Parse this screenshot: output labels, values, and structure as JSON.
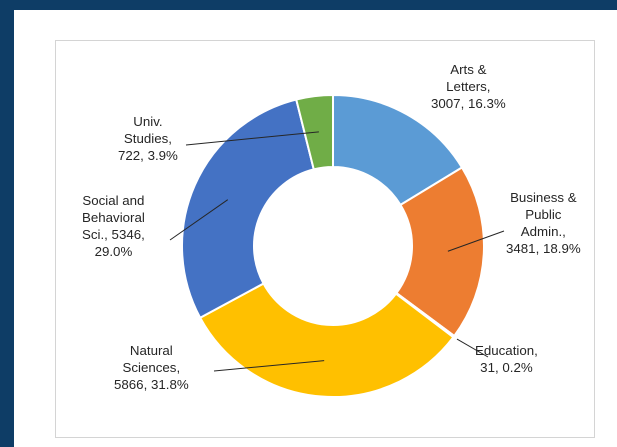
{
  "chart_data": {
    "type": "pie",
    "subtype": "donut",
    "series": [
      {
        "name": "Arts & Letters",
        "value": 3007,
        "percent": "16.3%",
        "color": "#5b9bd5",
        "label_lines": [
          "Arts &",
          "Letters,",
          "3007, 16.3%"
        ]
      },
      {
        "name": "Business & Public Admin.",
        "value": 3481,
        "percent": "18.9%",
        "color": "#ed7d31",
        "label_lines": [
          "Business &",
          "Public",
          "Admin.,",
          "3481, 18.9%"
        ]
      },
      {
        "name": "Education",
        "value": 31,
        "percent": "0.2%",
        "color": "#a5a5a5",
        "label_lines": [
          "Education,",
          "31, 0.2%"
        ]
      },
      {
        "name": "Natural Sciences",
        "value": 5866,
        "percent": "31.8%",
        "color": "#ffc000",
        "label_lines": [
          "Natural",
          "Sciences,",
          "5866, 31.8%"
        ]
      },
      {
        "name": "Social and Behavioral Sci.",
        "value": 5346,
        "percent": "29.0%",
        "color": "#4472c4",
        "label_lines": [
          "Social and",
          "Behavioral",
          "Sci., 5346,",
          "29.0%"
        ]
      },
      {
        "name": "Univ. Studies",
        "value": 722,
        "percent": "3.9%",
        "color": "#70ad47",
        "label_lines": [
          "Univ.",
          "Studies,",
          "722, 3.9%"
        ]
      }
    ],
    "title": "",
    "legend": "none",
    "data_labels": "outside with leader lines"
  }
}
